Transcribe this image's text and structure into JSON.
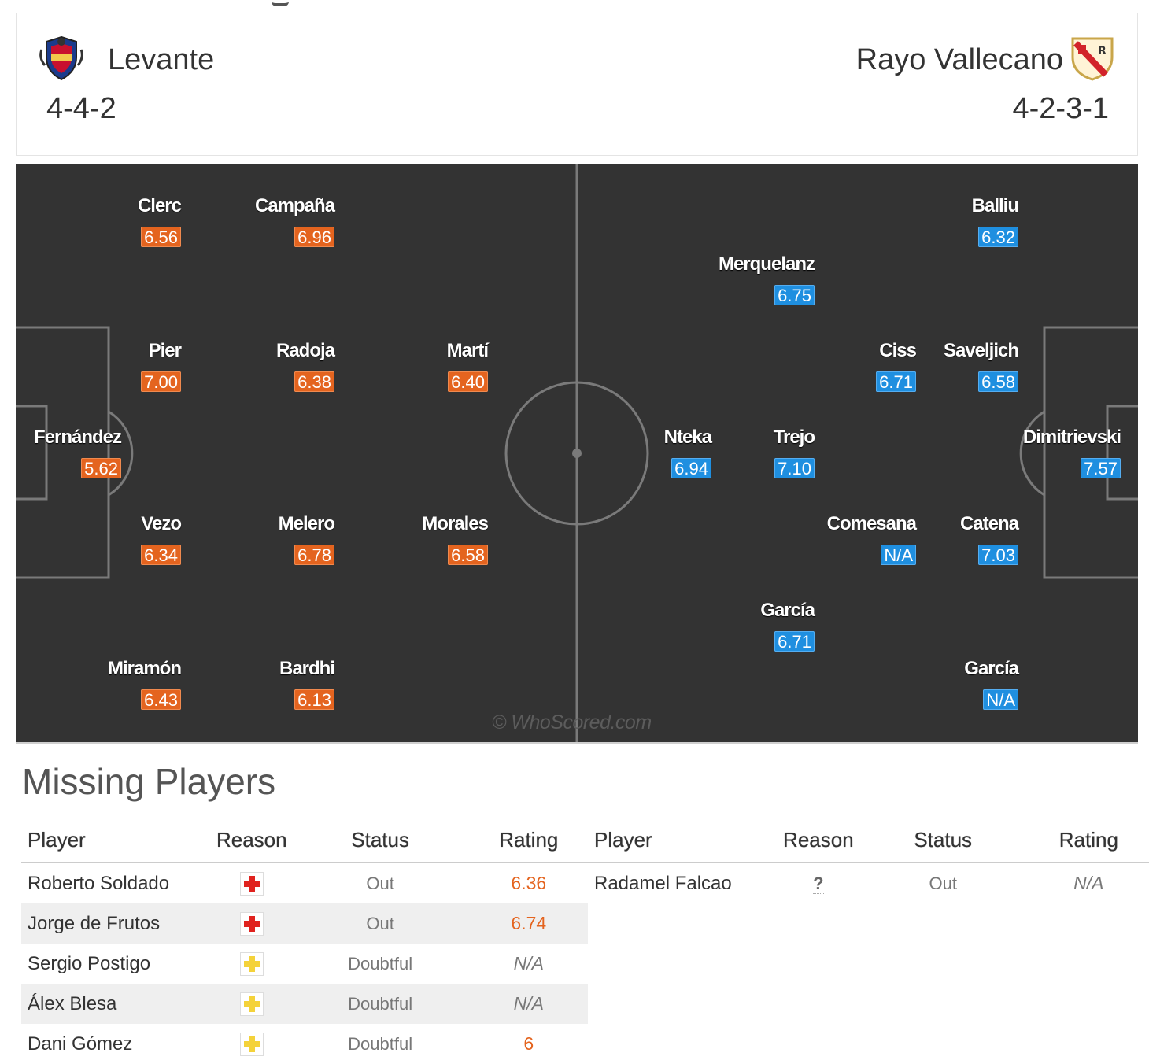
{
  "home": {
    "name": "Levante",
    "formation": "4-4-2",
    "crest_icon": "levante-crest-icon"
  },
  "away": {
    "name": "Rayo Vallecano",
    "formation": "4-2-3-1",
    "crest_icon": "rayo-vallecano-crest-icon"
  },
  "colors": {
    "pitch": "#333333",
    "home_rating": "#e4641f",
    "away_rating": "#1f8fe0"
  },
  "pitch": {
    "watermark": "© WhoScored.com",
    "home_players": [
      {
        "name": "Clerc",
        "rating": "6.56"
      },
      {
        "name": "Campaña",
        "rating": "6.96"
      },
      {
        "name": "Pier",
        "rating": "7.00"
      },
      {
        "name": "Radoja",
        "rating": "6.38"
      },
      {
        "name": "Martí",
        "rating": "6.40"
      },
      {
        "name": "Fernández",
        "rating": "5.62"
      },
      {
        "name": "Vezo",
        "rating": "6.34"
      },
      {
        "name": "Melero",
        "rating": "6.78"
      },
      {
        "name": "Morales",
        "rating": "6.58"
      },
      {
        "name": "Miramón",
        "rating": "6.43"
      },
      {
        "name": "Bardhi",
        "rating": "6.13"
      }
    ],
    "away_players": [
      {
        "name": "Balliu",
        "rating": "6.32"
      },
      {
        "name": "Merquelanz",
        "rating": "6.75"
      },
      {
        "name": "Ciss",
        "rating": "6.71"
      },
      {
        "name": "Saveljich",
        "rating": "6.58"
      },
      {
        "name": "Nteka",
        "rating": "6.94"
      },
      {
        "name": "Trejo",
        "rating": "7.10"
      },
      {
        "name": "Dimitrievski",
        "rating": "7.57"
      },
      {
        "name": "Comesana",
        "rating": "N/A"
      },
      {
        "name": "Catena",
        "rating": "7.03"
      },
      {
        "name": "García",
        "rating": "6.71"
      },
      {
        "name": "García",
        "rating": "N/A"
      }
    ]
  },
  "missing": {
    "title": "Missing Players",
    "headers": {
      "player": "Player",
      "reason": "Reason",
      "status": "Status",
      "rating": "Rating"
    },
    "home": [
      {
        "player": "Roberto Soldado",
        "reason_icon": "injury-red-cross-icon",
        "status": "Out",
        "rating": "6.36"
      },
      {
        "player": "Jorge de Frutos",
        "reason_icon": "injury-red-cross-icon",
        "status": "Out",
        "rating": "6.74"
      },
      {
        "player": "Sergio Postigo",
        "reason_icon": "doubtful-yellow-cross-icon",
        "status": "Doubtful",
        "rating": "N/A"
      },
      {
        "player": "Álex Blesa",
        "reason_icon": "doubtful-yellow-cross-icon",
        "status": "Doubtful",
        "rating": "N/A"
      },
      {
        "player": "Dani Gómez",
        "reason_icon": "doubtful-yellow-cross-icon",
        "status": "Doubtful",
        "rating": "6"
      }
    ],
    "away": [
      {
        "player": "Radamel Falcao",
        "reason_icon": "unknown-reason-icon",
        "reason_text": "?",
        "status": "Out",
        "rating": "N/A"
      }
    ]
  }
}
